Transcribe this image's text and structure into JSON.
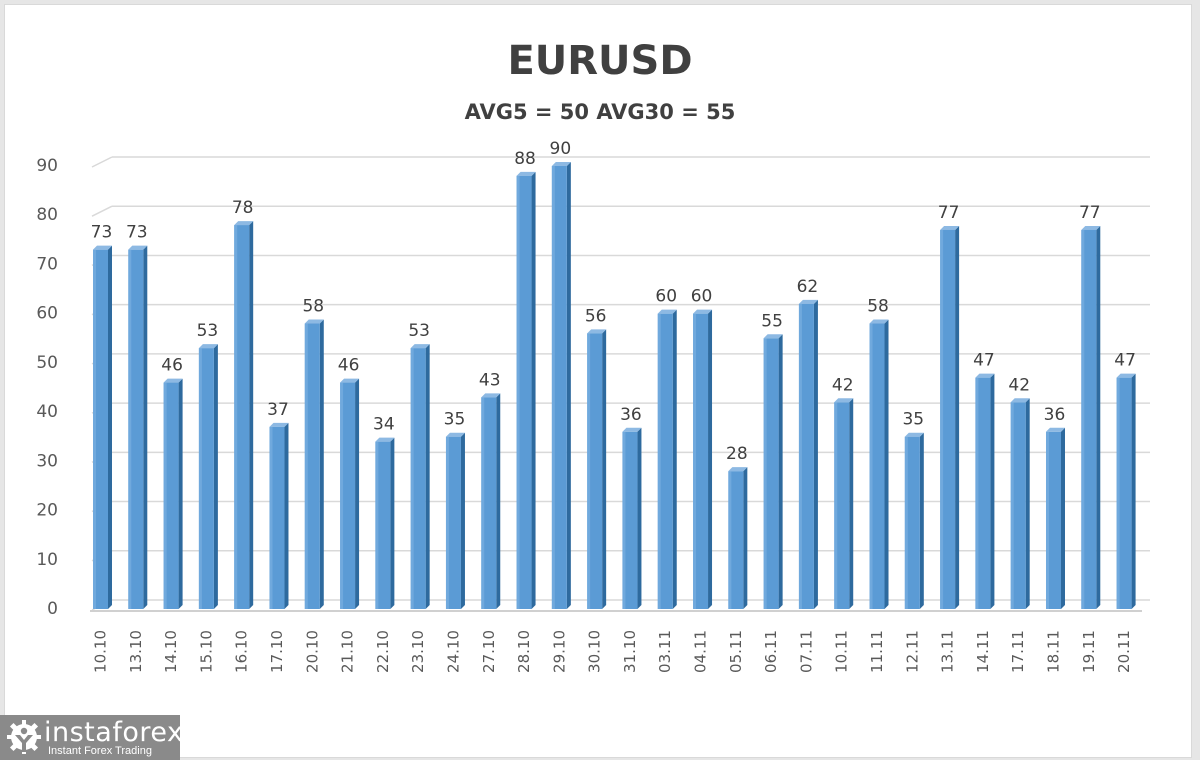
{
  "chart": {
    "title": "EURUSD",
    "subtitle": "AVG5 = 50 AVG30 = 55"
  },
  "logo": {
    "name": "instaforex",
    "tagline": "Instant Forex Trading",
    "icon": "gear-person-icon"
  },
  "colors": {
    "bar_face": "#5b9bd5",
    "bar_side": "#2e6a9e",
    "bar_top": "#8db9e3",
    "grid": "#d9d9d9",
    "axis_text": "#595959",
    "title_text": "#404040",
    "logo_bg": "#8a8a8a"
  },
  "chart_data": {
    "type": "bar",
    "title": "EURUSD",
    "subtitle": "AVG5 = 50 AVG30 = 55",
    "xlabel": "",
    "ylabel": "",
    "ylim": [
      0,
      90
    ],
    "yticks": [
      0,
      10,
      20,
      30,
      40,
      50,
      60,
      70,
      80,
      90
    ],
    "grid": true,
    "legend": "none",
    "data_labels": true,
    "style": "3d-column",
    "categories": [
      "10.10",
      "13.10",
      "14.10",
      "15.10",
      "16.10",
      "17.10",
      "20.10",
      "21.10",
      "22.10",
      "23.10",
      "24.10",
      "27.10",
      "28.10",
      "29.10",
      "30.10",
      "31.10",
      "03.11",
      "04.11",
      "05.11",
      "06.11",
      "07.11",
      "10.11",
      "11.11",
      "12.11",
      "13.11",
      "14.11",
      "17.11",
      "18.11",
      "19.11",
      "20.11"
    ],
    "values": [
      73,
      73,
      46,
      53,
      78,
      37,
      58,
      46,
      34,
      53,
      35,
      43,
      88,
      90,
      56,
      36,
      60,
      60,
      28,
      55,
      62,
      42,
      58,
      35,
      77,
      47,
      42,
      36,
      77,
      47
    ]
  }
}
